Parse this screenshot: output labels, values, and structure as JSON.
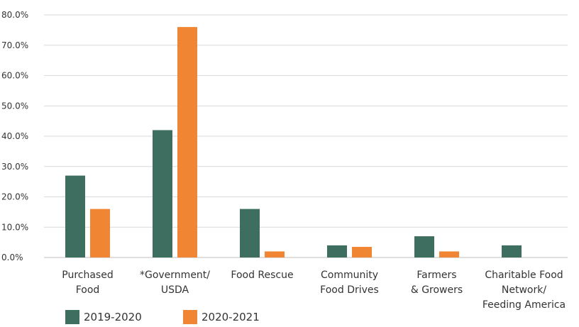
{
  "chart_data": {
    "type": "bar",
    "categories": [
      [
        "Purchased",
        "Food"
      ],
      [
        "*Government/",
        "USDA"
      ],
      [
        "Food Rescue"
      ],
      [
        "Community",
        "Food Drives"
      ],
      [
        "Farmers",
        "& Growers"
      ],
      [
        "Charitable Food",
        "Network/",
        "Feeding America"
      ]
    ],
    "series": [
      {
        "name": "2019-2020",
        "color": "#3d6e5f",
        "values": [
          27.0,
          42.0,
          16.0,
          4.0,
          7.0,
          4.0
        ]
      },
      {
        "name": "2020-2021",
        "color": "#f08533",
        "values": [
          16.0,
          76.0,
          2.0,
          3.5,
          2.0,
          0
        ]
      }
    ],
    "yticks": [
      "0.0%",
      "10.0%",
      "20.0%",
      "30.0%",
      "40.0%",
      "50.0%",
      "60.0%",
      "70.0%",
      "80.0%"
    ],
    "ylim": [
      0,
      80
    ],
    "grid": true,
    "legend_position": "bottom-left"
  }
}
